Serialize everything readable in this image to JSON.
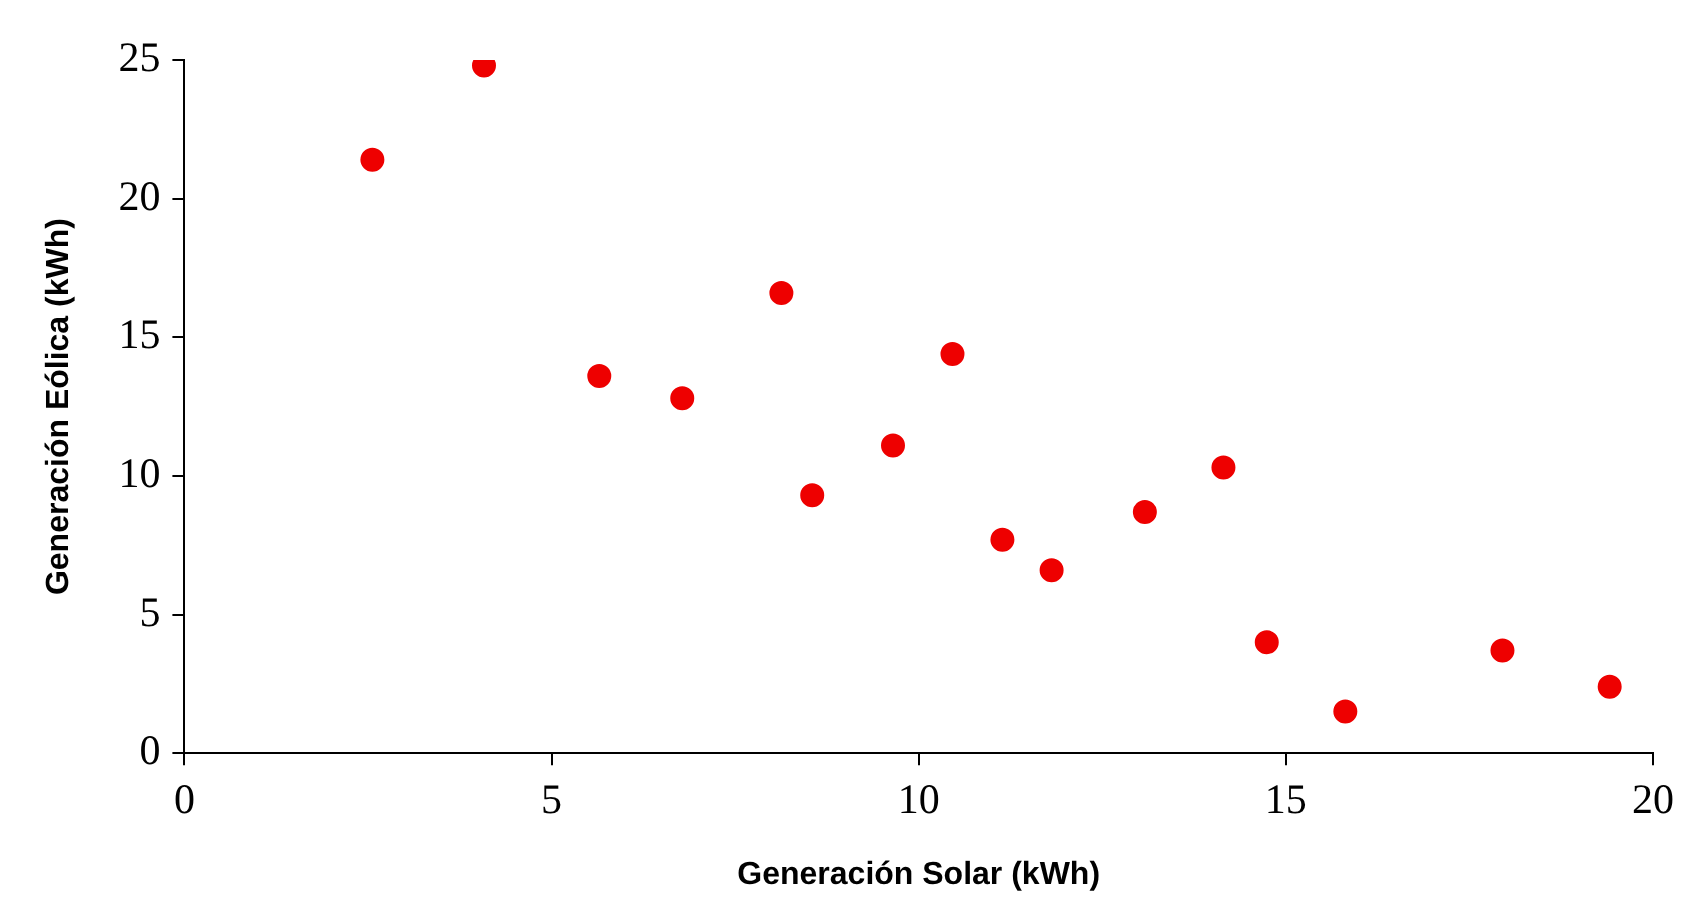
{
  "chart_data": {
    "type": "scatter",
    "xlabel": "Generación Solar (kWh)",
    "ylabel": "Generación Eólica (kWh)",
    "x": [
      2.56,
      4.08,
      5.65,
      6.78,
      8.13,
      8.55,
      9.65,
      10.46,
      11.14,
      11.81,
      13.08,
      14.15,
      14.74,
      15.81,
      17.95,
      19.41
    ],
    "series": [
      {
        "color": "#ee0000",
        "values": [
          21.4,
          24.8,
          13.6,
          12.8,
          16.6,
          9.3,
          11.1,
          14.4,
          7.7,
          6.6,
          8.7,
          10.3,
          4.0,
          1.5,
          3.7,
          2.4
        ]
      }
    ],
    "xlim": [
      0,
      20
    ],
    "xticks": [
      0,
      5,
      10,
      15,
      20
    ],
    "ylim": [
      0,
      25
    ],
    "yticks": [
      0,
      5,
      10,
      15,
      20,
      25
    ],
    "grid": false,
    "legend": false,
    "marker": "circle"
  }
}
